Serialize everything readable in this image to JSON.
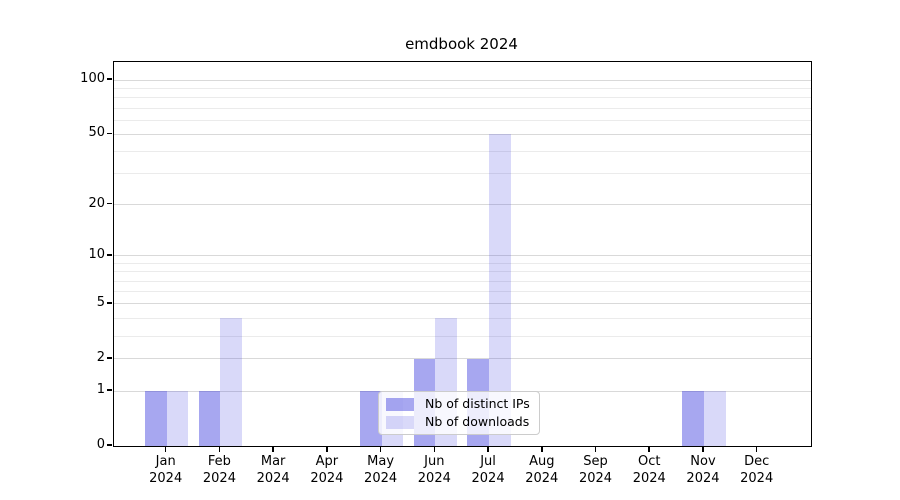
{
  "title": "emdbook 2024",
  "chart_data": {
    "type": "bar",
    "title": "emdbook 2024",
    "x_categories": [
      "Jan",
      "Feb",
      "Mar",
      "Apr",
      "May",
      "Jun",
      "Jul",
      "Aug",
      "Sep",
      "Oct",
      "Nov",
      "Dec"
    ],
    "x_year_label": "2024",
    "series": [
      {
        "name": "Nb of distinct IPs",
        "color": "rgba(45,45,220,0.42)",
        "color_effective_hex": "#a7a7f0",
        "values": [
          1,
          1,
          0,
          0,
          1,
          2,
          2,
          0,
          0,
          0,
          1,
          0
        ]
      },
      {
        "name": "Nb of downloads",
        "color": "rgba(45,45,220,0.18)",
        "color_effective_hex": "#d9d9f9",
        "values": [
          1,
          4,
          0,
          0,
          1,
          4,
          50,
          0,
          0,
          0,
          1,
          0
        ]
      }
    ],
    "y_scale": "log10(value+1)",
    "y_ticks": [
      0,
      1,
      2,
      5,
      10,
      20,
      50,
      100
    ],
    "y_minor_gridlines": [
      3,
      4,
      6,
      7,
      8,
      9,
      30,
      40,
      60,
      70,
      80,
      90
    ],
    "y_axis_top_value": 126,
    "grid": "horizontal",
    "legend": {
      "position": "lower-center",
      "items": [
        "Nb of distinct IPs",
        "Nb of downloads"
      ]
    },
    "colors": {
      "major_grid": "#d9d9d9",
      "minor_grid": "#ebebeb",
      "axis": "#000000",
      "background": "#ffffff",
      "legend_border": "#cccccc"
    }
  }
}
